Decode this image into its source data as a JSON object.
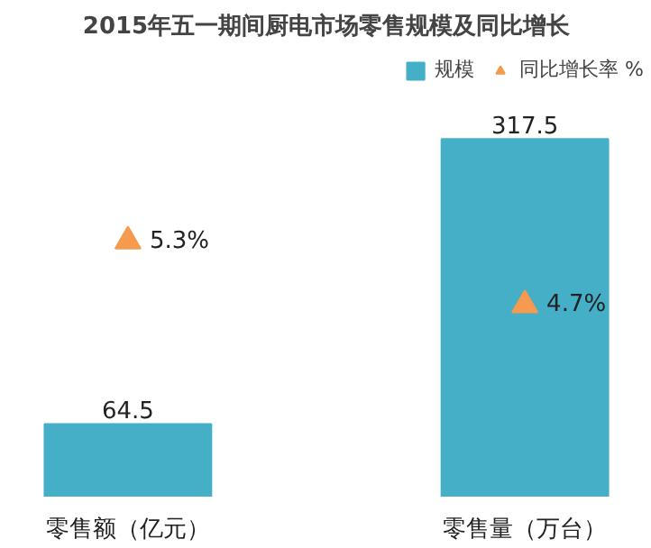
{
  "chart_data": {
    "type": "bar",
    "title": "2015年五一期间厨电市场零售规模及同比增长",
    "categories": [
      "零售额（亿元）",
      "零售量（万台）"
    ],
    "series": [
      {
        "name": "规模",
        "color": "#45afc8",
        "values": [
          64.5,
          317.5
        ],
        "value_labels": [
          "64.5",
          "317.5"
        ]
      },
      {
        "name": "同比增长率 %",
        "type": "scatter",
        "axis": "y2",
        "marker": "triangle",
        "color": "#f59a4e",
        "values": [
          5.3,
          4.7
        ],
        "value_labels": [
          "5.3%",
          "4.7%"
        ]
      }
    ],
    "tick_labels": "x",
    "grid": false,
    "legend": "top right"
  }
}
